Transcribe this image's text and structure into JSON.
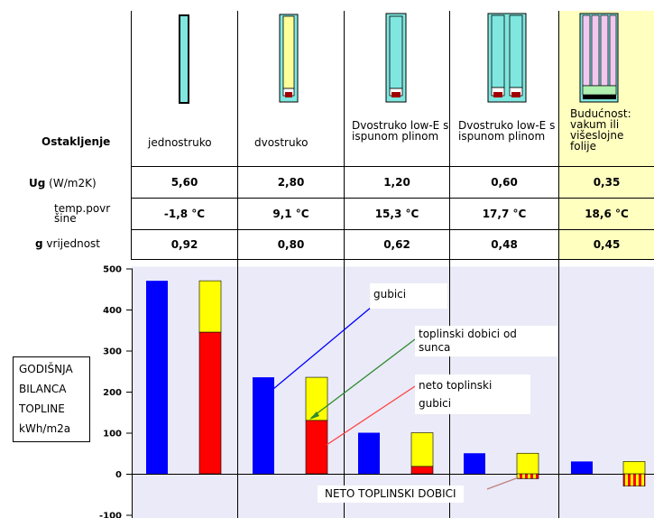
{
  "table": {
    "row_labels": {
      "ostakljenje": "Ostakljenje",
      "ug_bold": "Ug",
      "ug_unit": " (W/m2K)",
      "temp": "temp.povr\nšine",
      "g_bold": "g",
      "g_rest": " vrijednost"
    },
    "columns": [
      {
        "name": "jednostruko",
        "ug": "5,60",
        "temp": "-1,8 °C",
        "g": "0,92"
      },
      {
        "name": "dvostruko",
        "ug": "2,80",
        "temp": "9,1 °C",
        "g": "0,80"
      },
      {
        "name": "Dvostruko low-E s ispunom plinom",
        "ug": "1,20",
        "temp": "15,3 °C",
        "g": "0,62"
      },
      {
        "name": "Dvostruko low-E s ispunom plinom",
        "ug": "0,60",
        "temp": "17,7 °C",
        "g": "0,48"
      },
      {
        "name": "Budućnost: vakum ili višeslojne folije",
        "ug": "0,35",
        "temp": "18,6 °C",
        "g": "0,45"
      }
    ],
    "highlight_color": "#ffffc0"
  },
  "colors": {
    "blue": "#0000ff",
    "red": "#ff0000",
    "yellow": "#ffff00",
    "plot_bg": "#eaeaf8",
    "glass": "#7fe7e0",
    "cavity_yellow": "#ffff99",
    "cavity_pink": "#f0c8f0"
  },
  "callouts": {
    "gubici": "gubici",
    "dobici_line1": "toplinski dobici od",
    "dobici_line2": "sunca",
    "neto_line1": "neto toplinski",
    "neto_line2": "gubici",
    "neto_dobici": "NETO TOPLINSKI DOBICI"
  },
  "ylabel_box": [
    "GODIŠNJA",
    "BILANCA",
    "TOPLINE",
    "kWh/m2a"
  ],
  "chart_data": {
    "type": "bar",
    "categories": [
      "jednostruko",
      "dvostruko",
      "Dvostruko low-E s ispunom plinom",
      "Dvostruko low-E s ispunom plinom",
      "Budućnost: vakum ili višeslojne folije"
    ],
    "series": [
      {
        "name": "gubici",
        "values": [
          470,
          235,
          100,
          50,
          30
        ]
      },
      {
        "name": "neto toplinski gubici",
        "values": [
          345,
          130,
          18,
          -12,
          -30
        ]
      },
      {
        "name": "toplinski dobici od sunca",
        "values": [
          125,
          105,
          82,
          62,
          60
        ]
      }
    ],
    "ylim": [
      -100,
      500
    ],
    "yticks": [
      "500",
      "400",
      "300",
      "200",
      "100",
      "0",
      "-100"
    ],
    "ytick_values": [
      500,
      400,
      300,
      200,
      100,
      0,
      -100
    ]
  }
}
